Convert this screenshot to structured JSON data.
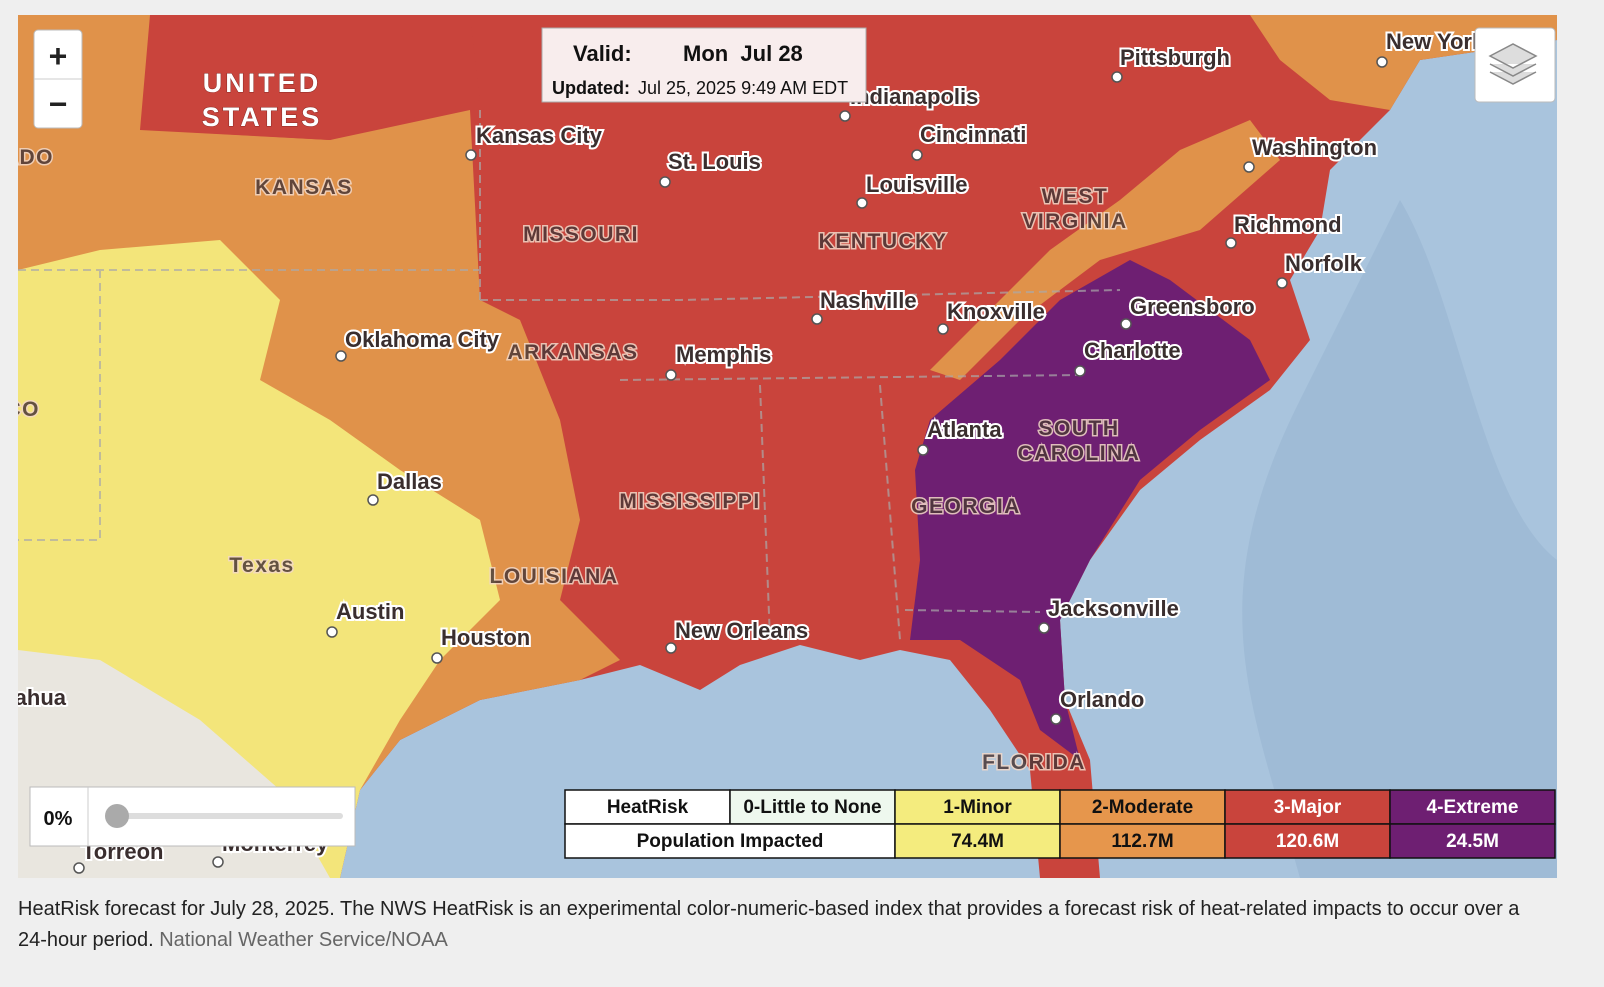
{
  "map": {
    "valid_label": "Valid:",
    "valid_date": "Mon  Jul 28",
    "updated_label": "Updated:",
    "updated_value": "Jul 25, 2025 9:49 AM EDT",
    "zoom_in": "+",
    "zoom_out": "−",
    "opacity": "0%",
    "region_labels": [
      "UNITED",
      "STATES",
      "KANSAS",
      "MISSOURI",
      "KENTUCKY",
      "WEST",
      "VIRGINIA",
      "ARKANSAS",
      "MISSISSIPPI",
      "LOUISIANA",
      "GEORGIA",
      "SOUTH",
      "CAROLINA",
      "FLORIDA",
      "Texas",
      "COLORADO",
      "NEW MEXICO"
    ],
    "cities": [
      "Kansas City",
      "St. Louis",
      "Indianapolis",
      "Cincinnati",
      "Louisville",
      "Pittsburgh",
      "Washington",
      "Richmond",
      "Norfolk",
      "Greensboro",
      "Charlotte",
      "Knoxville",
      "Nashville",
      "Memphis",
      "Oklahoma City",
      "Dallas",
      "Austin",
      "Houston",
      "New Orleans",
      "Atlanta",
      "Jacksonville",
      "Orlando",
      "New York",
      "Torreon",
      "Monterrey",
      "Chihuahua"
    ]
  },
  "legend": {
    "header": [
      "HeatRisk",
      "0-Little to None",
      "1-Minor",
      "2-Moderate",
      "3-Major",
      "4-Extreme"
    ],
    "row_label": "Population Impacted",
    "values": [
      "74.4M",
      "112.7M",
      "120.6M",
      "24.5M"
    ]
  },
  "caption": {
    "text": "HeatRisk forecast for July 28, 2025. The NWS HeatRisk is an experimental color-numeric-based index that provides a forecast risk of heat-related impacts to occur over a 24-hour period.",
    "credit": "National Weather Service/NOAA"
  }
}
